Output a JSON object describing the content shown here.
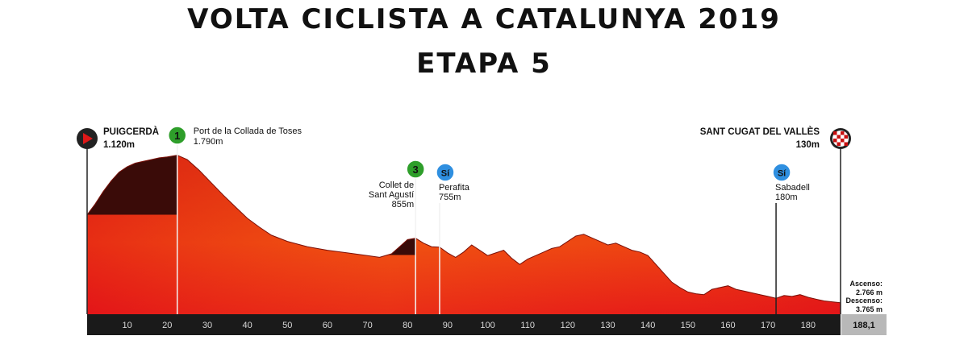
{
  "header": {
    "title": "VOLTA CICLISTA A CATALUNYA 2019",
    "subtitle": "ETAPA 5"
  },
  "colors": {
    "profile_bottom": "#e6141b",
    "profile_mid": "#f04a12",
    "profile_top": "#d82a10",
    "climb_fill": "#3a0b08",
    "km_bar": "#1a1a1a",
    "total_box": "#b8b8b8",
    "cat1_marker": "#2e9e2a",
    "cat3_marker": "#2e9e2a",
    "sprint_marker": "#2f8fe0"
  },
  "chart_data": {
    "type": "area",
    "title": "VOLTA CICLISTA A CATALUNYA 2019",
    "subtitle": "ETAPA 5",
    "xlabel": "",
    "ylabel": "",
    "xlim": [
      0,
      188.1
    ],
    "xticks": [
      10,
      20,
      30,
      40,
      50,
      60,
      70,
      80,
      90,
      100,
      110,
      120,
      130,
      140,
      150,
      160,
      170,
      180
    ],
    "total_distance_label": "188,1",
    "ylim": [
      0,
      1850
    ],
    "series": [
      {
        "x": [
          0,
          2,
          4,
          6,
          8,
          10,
          12,
          14,
          16,
          18,
          20,
          22.5,
          25,
          28,
          31,
          34,
          37,
          40,
          43,
          46,
          50,
          55,
          60,
          65,
          70,
          73,
          76,
          78,
          80,
          82,
          84,
          86,
          88,
          90,
          92,
          94,
          96,
          98,
          100,
          102,
          104,
          106,
          108,
          110,
          112,
          114,
          116,
          118,
          120,
          122,
          124,
          126,
          128,
          130,
          132,
          134,
          136,
          138,
          140,
          142,
          144,
          146,
          148,
          150,
          152,
          154,
          156,
          158,
          160,
          162,
          164,
          166,
          168,
          170,
          172,
          174,
          176,
          178,
          180,
          182,
          184,
          186,
          188.1
        ],
        "y": [
          1120,
          1240,
          1380,
          1500,
          1600,
          1660,
          1700,
          1720,
          1740,
          1760,
          1770,
          1790,
          1740,
          1620,
          1480,
          1340,
          1210,
          1080,
          980,
          890,
          820,
          760,
          720,
          690,
          660,
          640,
          680,
          760,
          840,
          855,
          800,
          760,
          755,
          690,
          640,
          700,
          780,
          720,
          660,
          690,
          720,
          630,
          560,
          620,
          660,
          700,
          740,
          760,
          820,
          880,
          900,
          860,
          820,
          780,
          800,
          760,
          720,
          700,
          660,
          560,
          460,
          360,
          300,
          250,
          230,
          220,
          280,
          300,
          320,
          280,
          260,
          240,
          220,
          200,
          180,
          210,
          200,
          220,
          190,
          170,
          150,
          140,
          130
        ]
      }
    ],
    "climb_shading": [
      {
        "from": 0,
        "to": 22.5
      },
      {
        "from": 75,
        "to": 82
      }
    ],
    "points": [
      {
        "name": "PUIGCERDÀ",
        "altitude": "1.120m",
        "km": 0,
        "kind": "start"
      },
      {
        "name": "Port de la Collada de Toses",
        "altitude": "1.790m",
        "km": 22.5,
        "kind": "climb",
        "category": "1"
      },
      {
        "name_lines": [
          "Collet de",
          "Sant Agustí"
        ],
        "altitude": "855m",
        "km": 82,
        "kind": "climb",
        "category": "3"
      },
      {
        "name": "Perafita",
        "altitude": "755m",
        "km": 88,
        "kind": "sprint",
        "badge": "Sí"
      },
      {
        "name": "Sabadell",
        "altitude": "180m",
        "km": 172,
        "kind": "sprint",
        "badge": "Sí"
      },
      {
        "name": "SANT CUGAT DEL VALLÈS",
        "altitude": "130m",
        "km": 188.1,
        "kind": "finish"
      }
    ],
    "stats": {
      "ascent_label": "Ascenso:",
      "ascent_value": "2.766 m",
      "descent_label": "Descenso:",
      "descent_value": "3.765 m"
    }
  }
}
